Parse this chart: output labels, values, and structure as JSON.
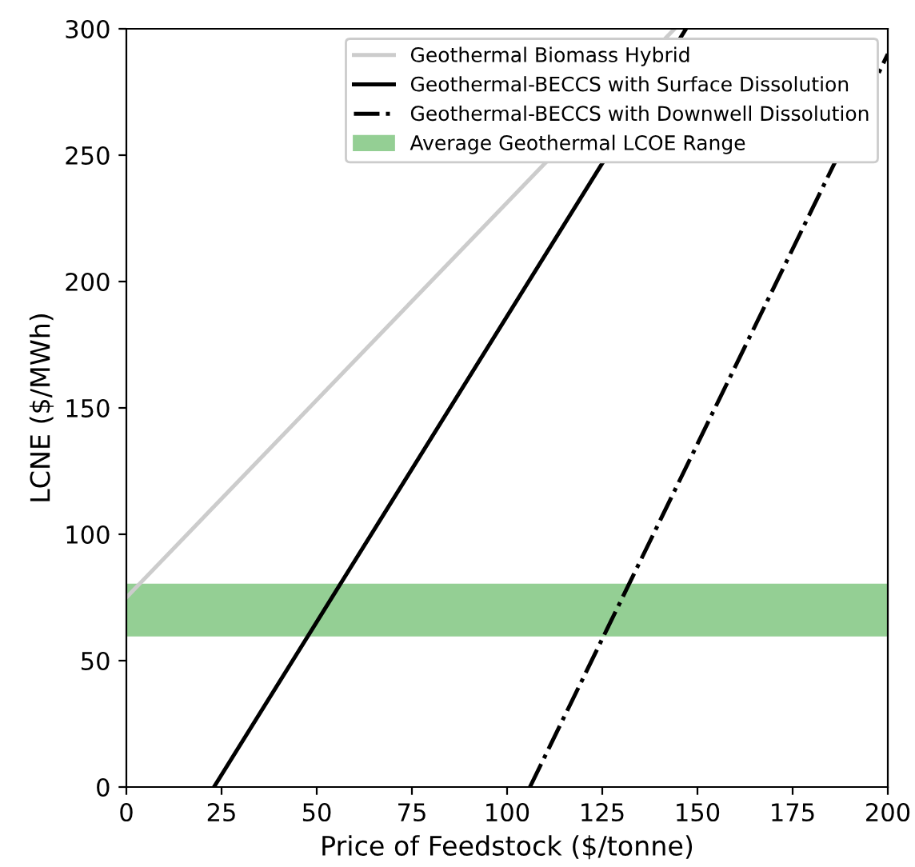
{
  "chart_data": {
    "type": "line",
    "xlabel": "Price of Feedstock ($/tonne)",
    "ylabel": "LCNE ($/MWh)",
    "series": [
      {
        "name": "Geothermal Biomass Hybrid",
        "color": "#cccccc",
        "x": [
          0,
          144
        ],
        "values": [
          75,
          300
        ],
        "line_style": "solid"
      },
      {
        "name": "Geothermal-BECCS with Surface Dissolution",
        "color": "#000000",
        "x": [
          23,
          147
        ],
        "values": [
          0,
          300
        ],
        "line_style": "solid"
      },
      {
        "name": "Geothermal-BECCS with Downwell Dissolution",
        "color": "#000000",
        "x": [
          106,
          200
        ],
        "values": [
          0,
          290
        ],
        "line_style": "dashdot"
      }
    ],
    "bands": [
      {
        "axis": "y",
        "from": 60,
        "to": 80,
        "label": "Average Geothermal LCOE Range",
        "color": "#2ca02c"
      }
    ],
    "xlim": [
      0,
      200
    ],
    "ylim": [
      0,
      300
    ],
    "xticks": [
      0,
      25,
      50,
      75,
      100,
      125,
      150,
      175,
      200
    ],
    "yticks": [
      0,
      50,
      100,
      150,
      200,
      250,
      300
    ],
    "grid": false,
    "legend": "top right",
    "marker": "none"
  }
}
